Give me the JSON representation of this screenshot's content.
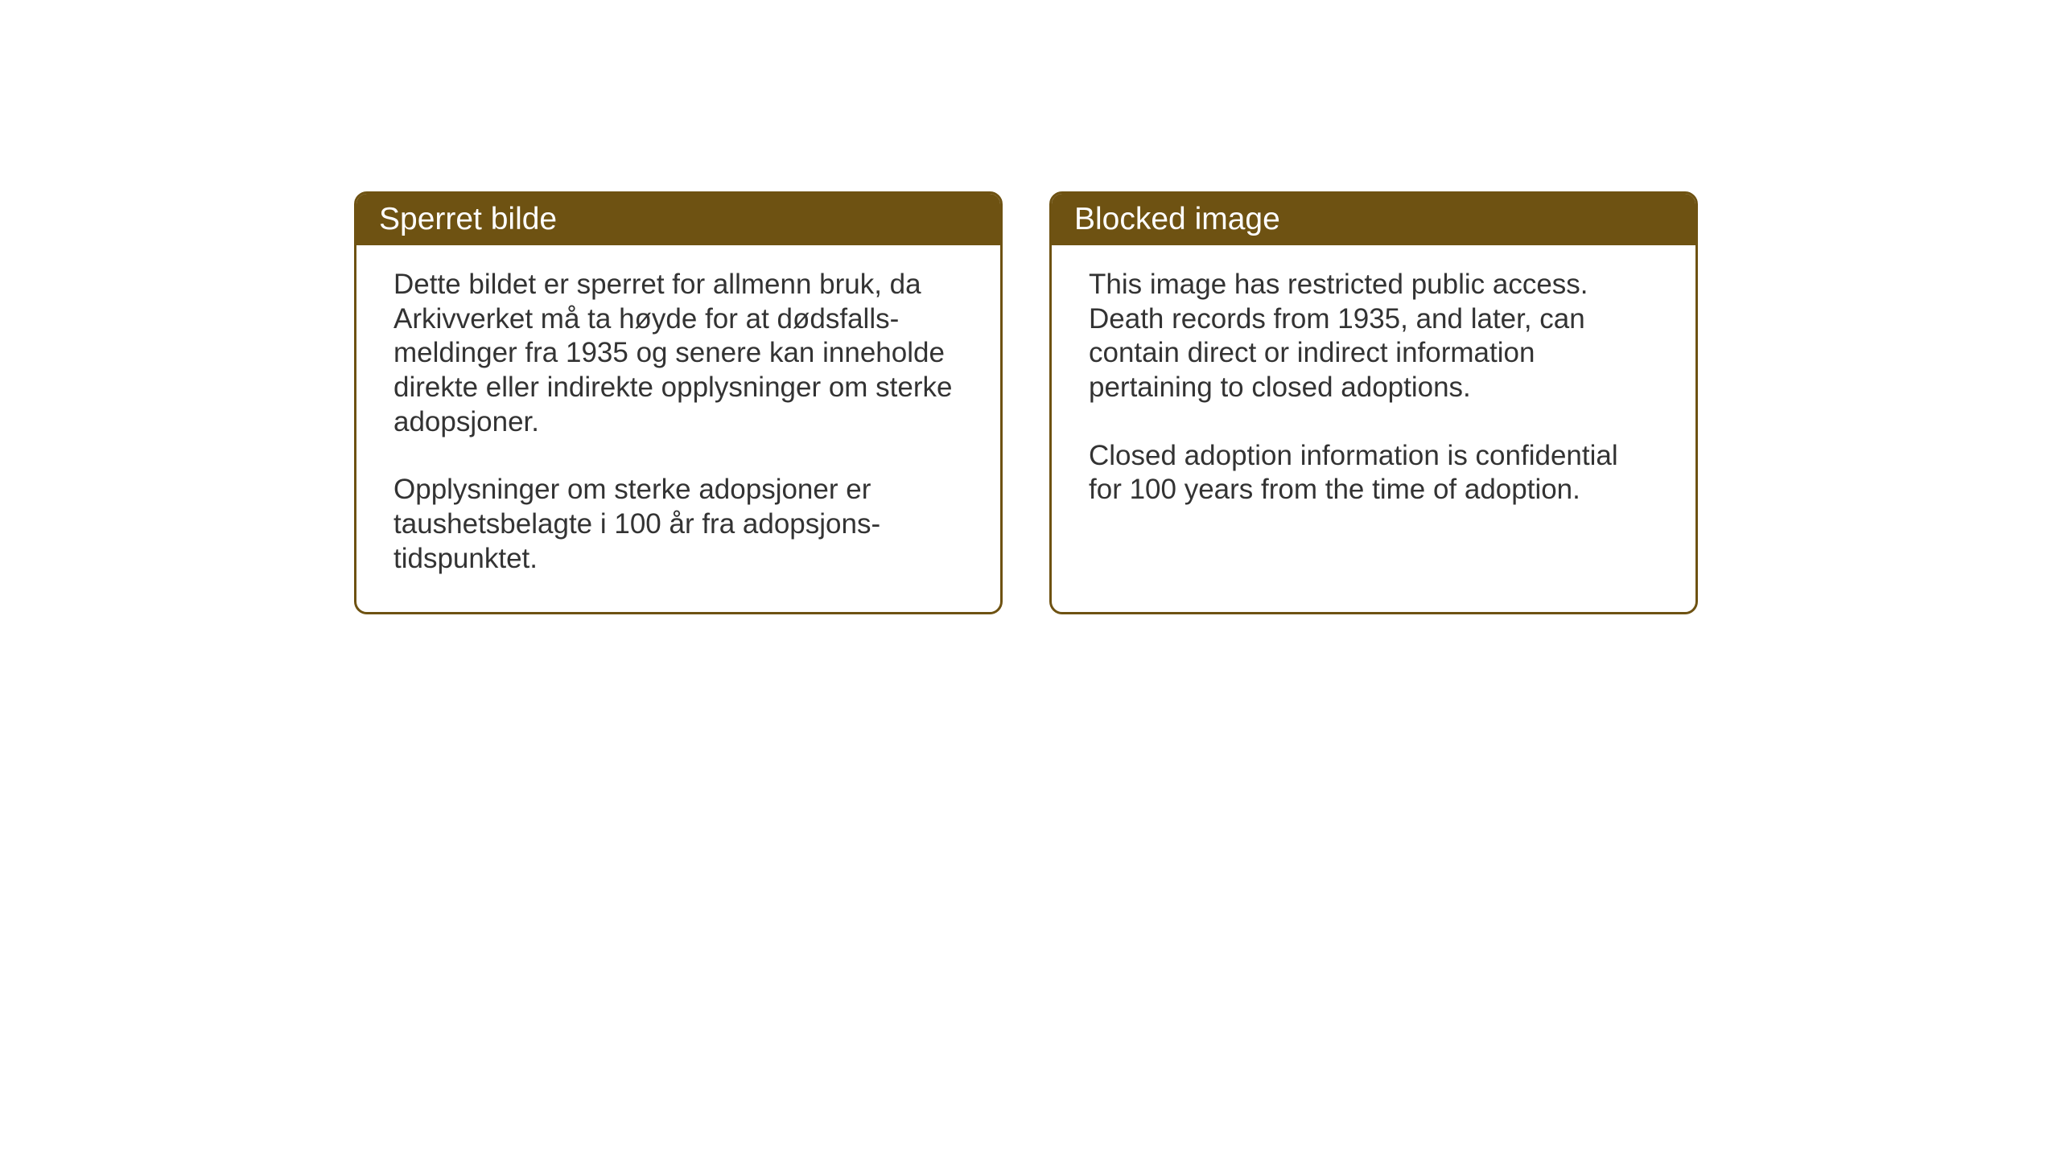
{
  "cards": [
    {
      "title": "Sperret bilde",
      "paragraph1": "Dette bildet er sperret for allmenn bruk, da Arkivverket må ta høyde for at dødsfalls-meldinger fra 1935 og senere kan inneholde direkte eller indirekte opplysninger om sterke adopsjoner.",
      "paragraph2": "Opplysninger om sterke adopsjoner er taushetsbelagte i 100 år fra adopsjons-tidspunktet."
    },
    {
      "title": "Blocked image",
      "paragraph1": "This image has restricted public access. Death records from 1935, and later, can contain direct or indirect information pertaining to closed adoptions.",
      "paragraph2": "Closed adoption information is confidential for 100 years from the time of adoption."
    }
  ],
  "styling": {
    "header_bg_color": "#6e5212",
    "header_text_color": "#ffffff",
    "border_color": "#6e5212",
    "body_text_color": "#333333",
    "card_bg_color": "#ffffff",
    "page_bg_color": "#ffffff",
    "header_fontsize": 39,
    "body_fontsize": 35,
    "border_radius": 16,
    "border_width": 3
  }
}
